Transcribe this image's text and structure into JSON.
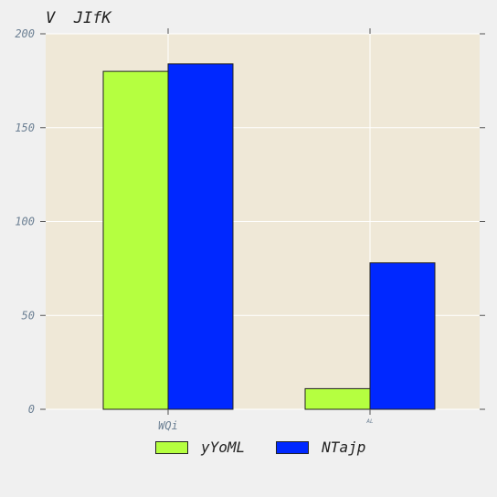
{
  "chart_data": {
    "type": "bar",
    "title": "V  JIfK",
    "xlabel": "",
    "ylabel": "",
    "categories": [
      "WQi",
      "AL"
    ],
    "series": [
      {
        "name": "yYoML",
        "color": "#b5ff40",
        "values": [
          180,
          11
        ]
      },
      {
        "name": "NTajp",
        "color": "#0028ff",
        "values": [
          184,
          78
        ]
      }
    ],
    "ylim": [
      0,
      200
    ],
    "yticks": [
      "0",
      "50",
      "100",
      "150",
      "200"
    ],
    "grid": true,
    "legend_position": "bottom-center",
    "plot_background": "#efe8d7",
    "grid_color": "#ffffff",
    "tick_label_color": "#6b7f93"
  }
}
